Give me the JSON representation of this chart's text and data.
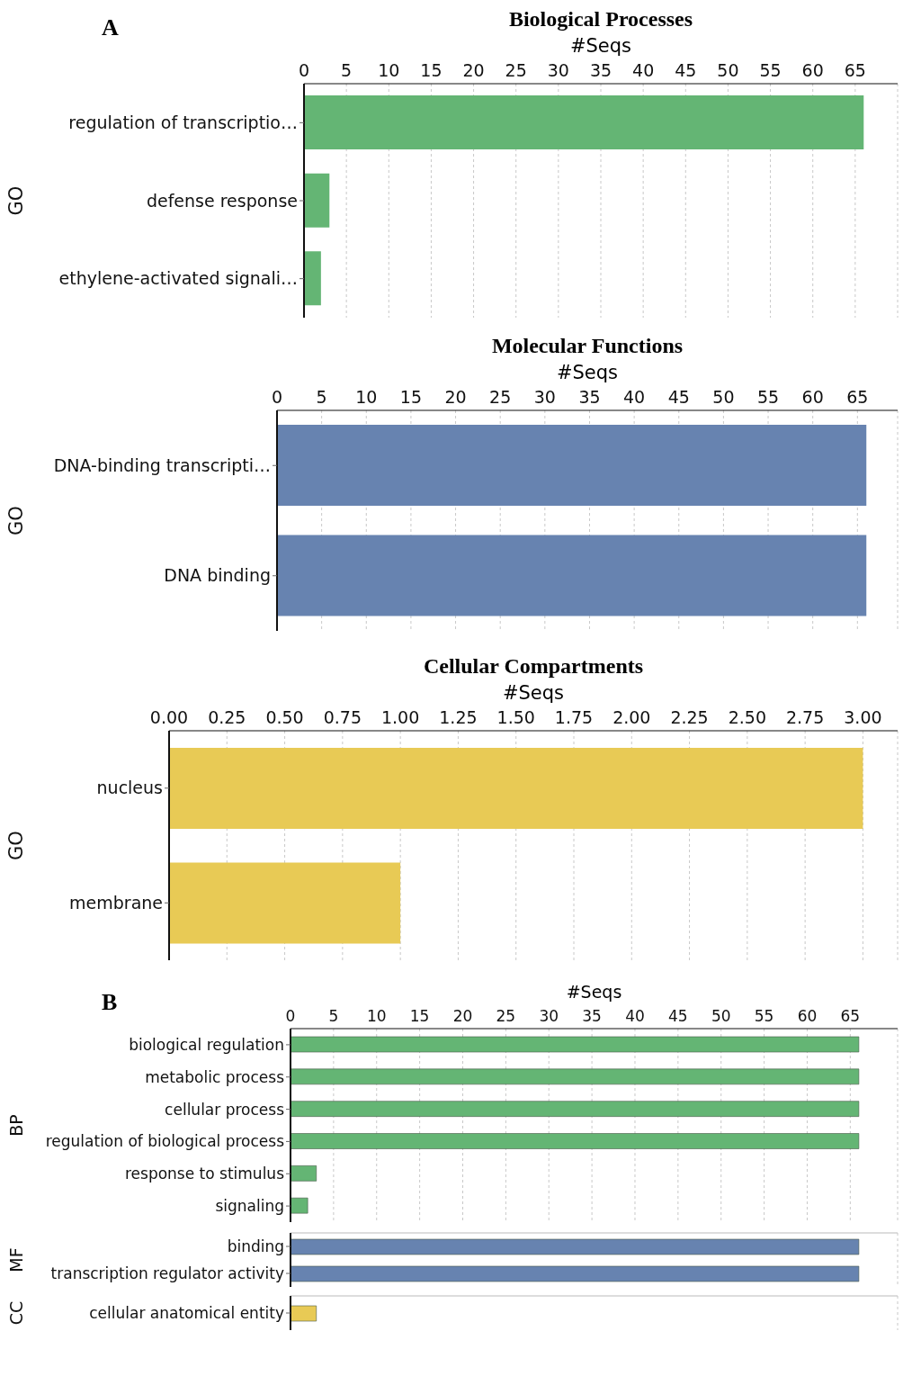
{
  "chart_data": [
    {
      "type": "bar",
      "orientation": "horizontal",
      "title": "Biological Processes",
      "xlabel": "#Seqs",
      "ylabel": "GO",
      "annotations": [
        "A"
      ],
      "categories": [
        "regulation of transcriptio…",
        "defense response",
        "ethylene-activated signali…"
      ],
      "values": [
        66,
        3,
        2
      ],
      "color": "#64b574",
      "xlim": [
        0,
        70
      ],
      "xticks": [
        0,
        5,
        10,
        15,
        20,
        25,
        30,
        35,
        40,
        45,
        50,
        55,
        60,
        65
      ],
      "grid": "x"
    },
    {
      "type": "bar",
      "orientation": "horizontal",
      "title": "Molecular Functions",
      "xlabel": "#Seqs",
      "ylabel": "GO",
      "categories": [
        "DNA-binding transcripti…",
        "DNA binding"
      ],
      "values": [
        66,
        66
      ],
      "color": "#6783b0",
      "xlim": [
        0,
        69.5
      ],
      "xticks": [
        0,
        5,
        10,
        15,
        20,
        25,
        30,
        35,
        40,
        45,
        50,
        55,
        60,
        65
      ],
      "grid": "x"
    },
    {
      "type": "bar",
      "orientation": "horizontal",
      "title": "Cellular Compartments",
      "xlabel": "#Seqs",
      "ylabel": "GO",
      "categories": [
        "nucleus",
        "membrane"
      ],
      "values": [
        3,
        1
      ],
      "color": "#e8ca55",
      "xlim": [
        0,
        3.15
      ],
      "xticks": [
        {
          "value": 0,
          "label": "0.00"
        },
        {
          "value": 0.25,
          "label": "0.25"
        },
        {
          "value": 0.5,
          "label": "0.50"
        },
        {
          "value": 0.75,
          "label": "0.75"
        },
        {
          "value": 1,
          "label": "1.00"
        },
        {
          "value": 1.25,
          "label": "1.25"
        },
        {
          "value": 1.5,
          "label": "1.50"
        },
        {
          "value": 1.75,
          "label": "1.75"
        },
        {
          "value": 2,
          "label": "2.00"
        },
        {
          "value": 2.25,
          "label": "2.25"
        },
        {
          "value": 2.5,
          "label": "2.50"
        },
        {
          "value": 2.75,
          "label": "2.75"
        },
        {
          "value": 3,
          "label": "3.00"
        }
      ],
      "grid": "x"
    },
    {
      "type": "bar",
      "orientation": "horizontal",
      "xlabel": "#Seqs",
      "ylabel": "BP",
      "annotations": [
        "B"
      ],
      "categories": [
        "biological regulation",
        "metabolic process",
        "cellular process",
        "regulation of biological process",
        "response to stimulus",
        "signaling"
      ],
      "values": [
        66,
        66,
        66,
        66,
        3,
        2
      ],
      "color": "#64b574",
      "xlim": [
        0,
        70.5
      ],
      "xticks": [
        0,
        5,
        10,
        15,
        20,
        25,
        30,
        35,
        40,
        45,
        50,
        55,
        60,
        65
      ],
      "grid": "x"
    },
    {
      "type": "bar",
      "orientation": "horizontal",
      "ylabel": "MF",
      "categories": [
        "binding",
        "transcription regulator activity"
      ],
      "values": [
        66,
        66
      ],
      "color": "#6783b0",
      "xlim": [
        0,
        70.5
      ],
      "xticks": [
        0,
        5,
        10,
        15,
        20,
        25,
        30,
        35,
        40,
        45,
        50,
        55,
        60,
        65
      ],
      "grid": "x",
      "tick_labels": "y"
    },
    {
      "type": "bar",
      "orientation": "horizontal",
      "ylabel": "CC",
      "categories": [
        "cellular anatomical entity"
      ],
      "values": [
        3
      ],
      "color": "#e8ca55",
      "xlim": [
        0,
        70.5
      ],
      "xticks": [
        0,
        5,
        10,
        15,
        20,
        25,
        30,
        35,
        40,
        45,
        50,
        55,
        60,
        65
      ],
      "grid": "x",
      "tick_labels": "y"
    }
  ]
}
